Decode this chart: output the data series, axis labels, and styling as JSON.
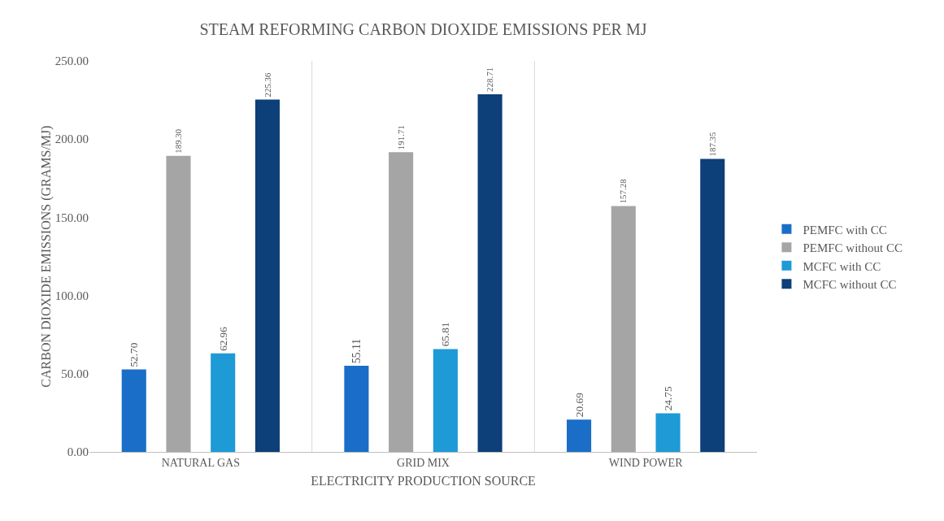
{
  "chart_data": {
    "type": "bar",
    "title": "STEAM REFORMING CARBON DIOXIDE EMISSIONS PER MJ",
    "xlabel": "ELECTRICITY PRODUCTION SOURCE",
    "ylabel": "CARBON DIOXIDE EMISSIONS (GRAMS/MJ)",
    "categories": [
      "NATURAL GAS",
      "GRID MIX",
      "WIND POWER"
    ],
    "series": [
      {
        "name": "PEMFC with CC",
        "color": "#1a6ec7",
        "values": [
          52.7,
          55.11,
          20.69
        ]
      },
      {
        "name": "PEMFC without CC",
        "color": "#a5a5a5",
        "values": [
          189.3,
          191.71,
          157.28
        ]
      },
      {
        "name": "MCFC with CC",
        "color": "#1e9ad6",
        "values": [
          62.96,
          65.81,
          24.75
        ]
      },
      {
        "name": "MCFC without CC",
        "color": "#0d3f78",
        "values": [
          225.36,
          228.71,
          187.35
        ]
      }
    ],
    "ylim": [
      0,
      250
    ],
    "yticks": [
      {
        "value": 0,
        "label": "0.00"
      },
      {
        "value": 50,
        "label": "50.00"
      },
      {
        "value": 100,
        "label": "100.00"
      },
      {
        "value": 150,
        "label": "150.00"
      },
      {
        "value": 200,
        "label": "200.00"
      },
      {
        "value": 250,
        "label": "250.00"
      }
    ],
    "value_labels": [
      [
        "52.70",
        "55.11",
        "20.69"
      ],
      [
        "189.30",
        "191.71",
        "157.28"
      ],
      [
        "62.96",
        "65.81",
        "24.75"
      ],
      [
        "225.36",
        "228.71",
        "187.35"
      ]
    ],
    "grid": "x",
    "legend": "right"
  }
}
